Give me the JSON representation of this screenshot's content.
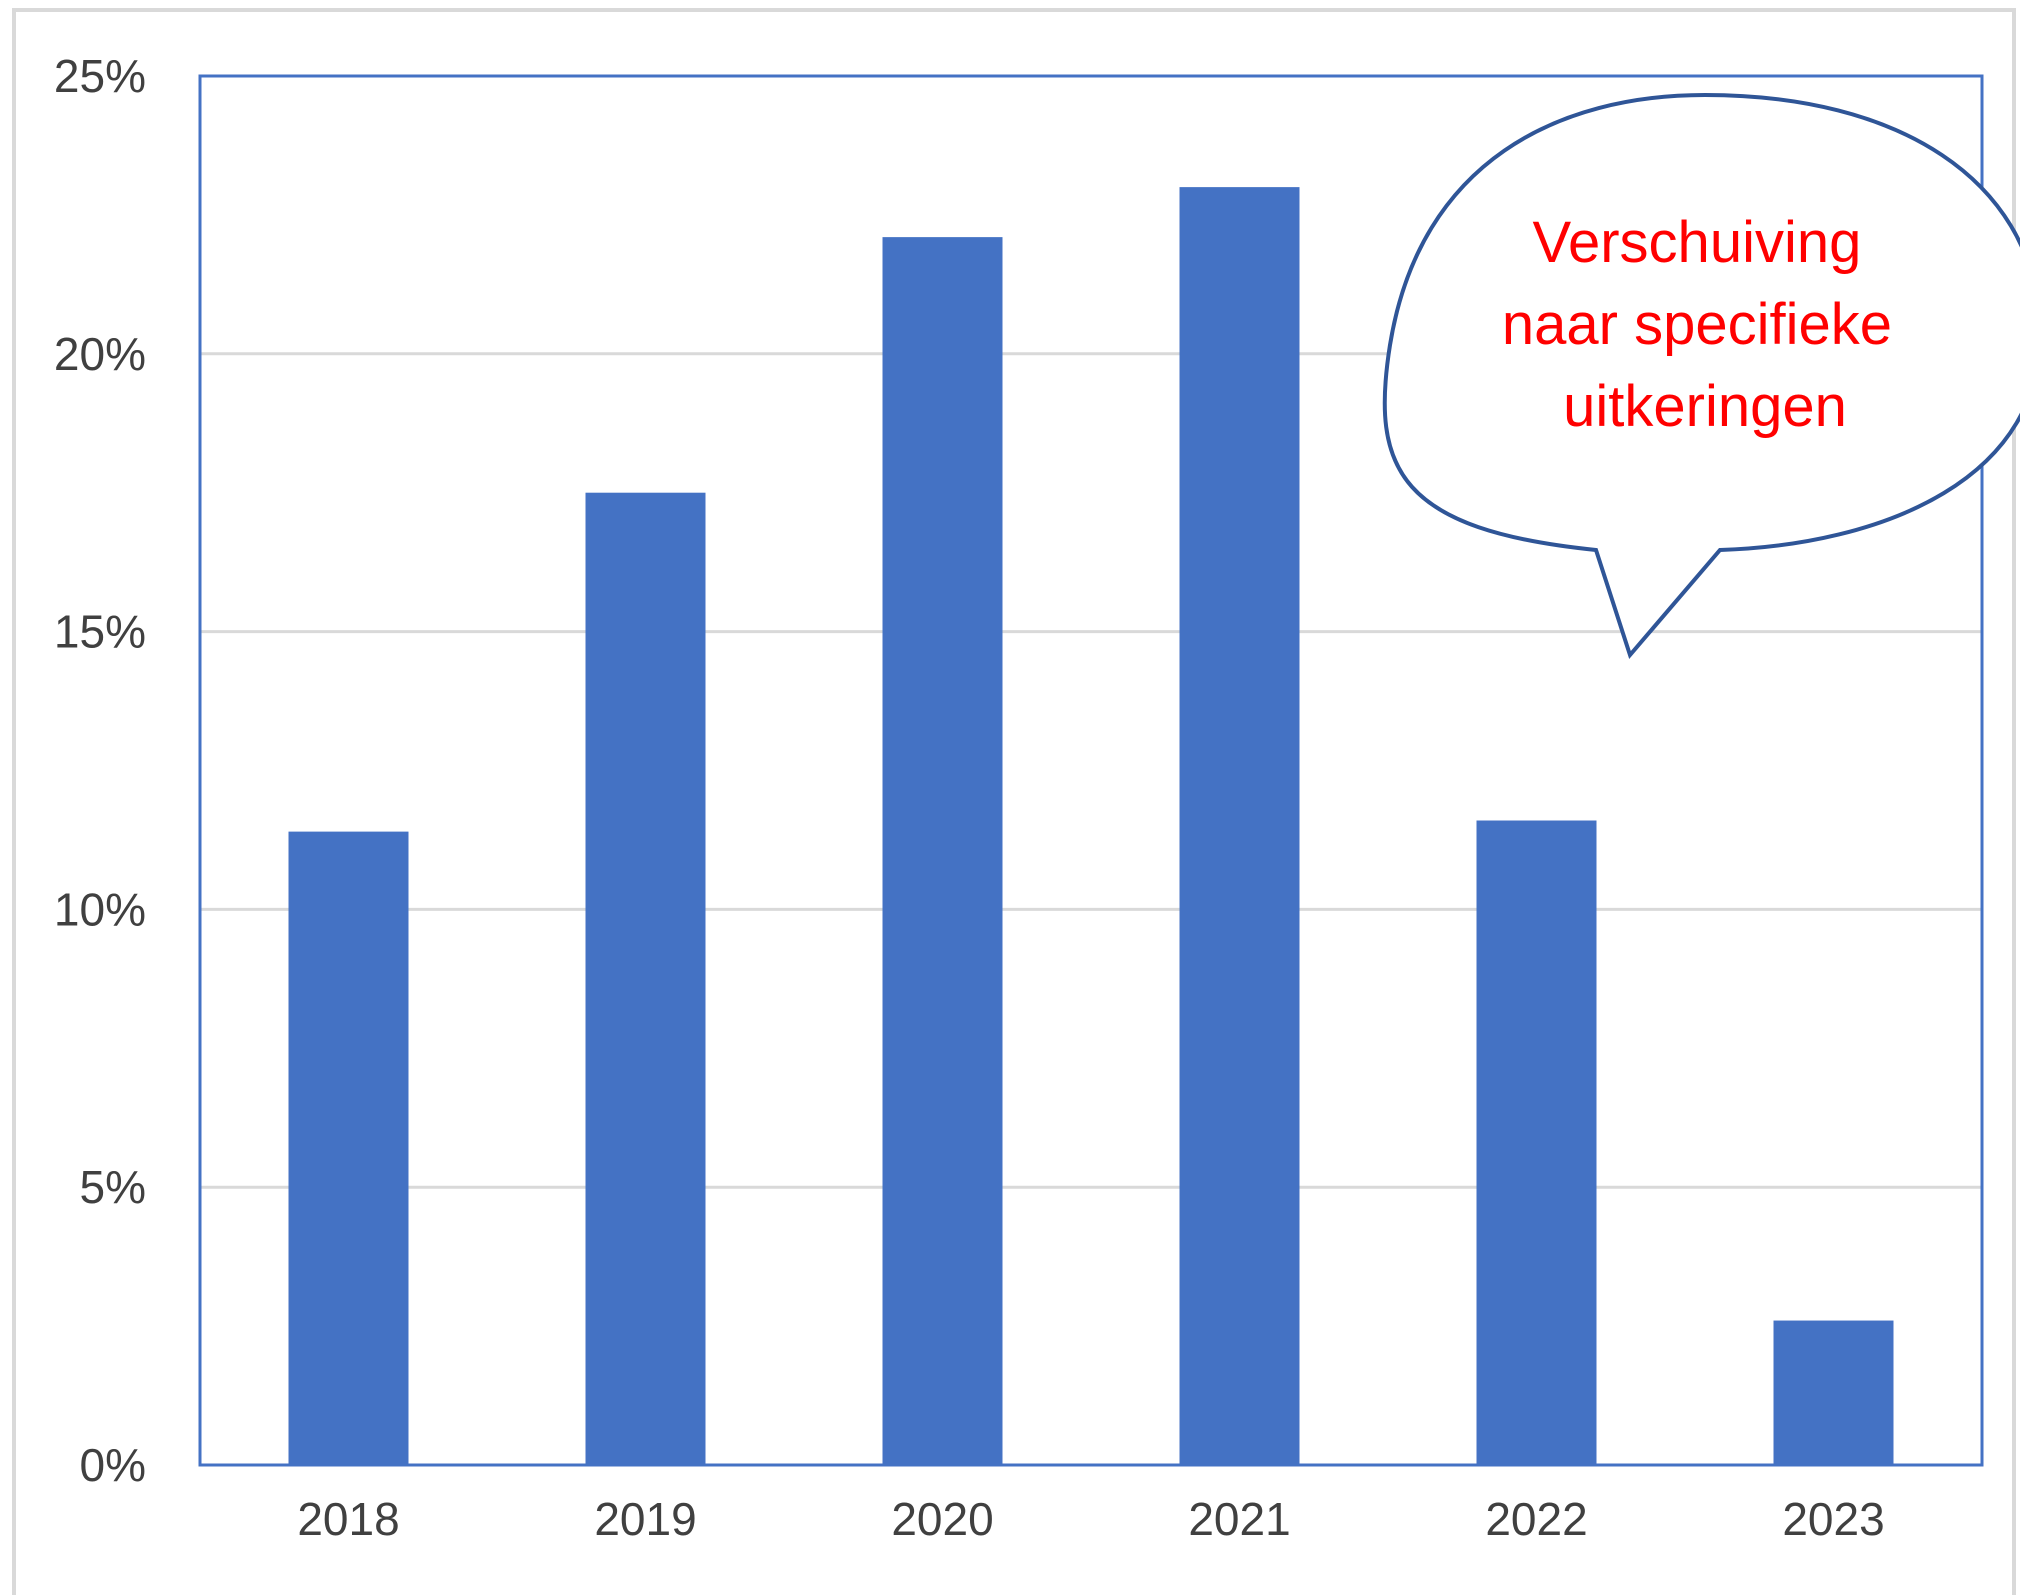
{
  "chart_data": {
    "type": "bar",
    "title": "",
    "xlabel": "",
    "ylabel": "",
    "categories": [
      "2018",
      "2019",
      "2020",
      "2021",
      "2022",
      "2023"
    ],
    "values": [
      11.4,
      17.5,
      22.1,
      23.0,
      11.6,
      2.6
    ],
    "ylim": [
      0,
      25
    ],
    "yticks": [
      0,
      5,
      10,
      15,
      20,
      25
    ],
    "ytick_format": "{v}%",
    "grid": true,
    "legend": "none",
    "annotation": {
      "lines": [
        "Verschuiving",
        "naar specifieke",
        "uitkeringen"
      ],
      "color": "#ff0000",
      "shape": "speech-bubble"
    }
  },
  "colors": {
    "bar": "#4472c4",
    "grid": "#d9d9d9",
    "plot_border": "#4472c4",
    "bubble_outline": "#2f5597",
    "frame": "#d9d9d9"
  }
}
